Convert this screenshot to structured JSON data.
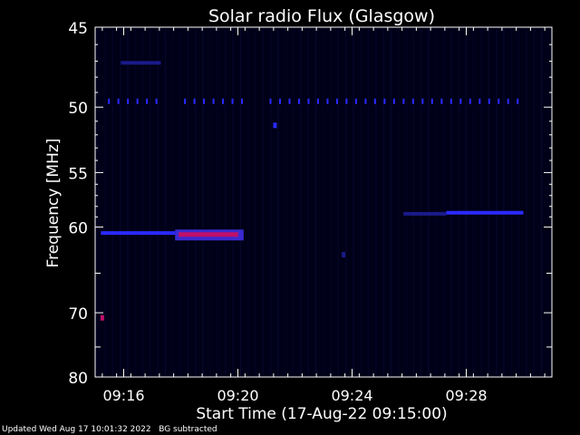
{
  "chart_data": {
    "type": "heatmap",
    "title": "Solar radio Flux (Glasgow)",
    "xlabel": "Start Time (17-Aug-22 09:15:00)",
    "ylabel": "Frequency [MHz]",
    "x_range_minutes": [
      9.25,
      9.5167
    ],
    "x_ticks": [
      {
        "label": "09:16",
        "minute": 16
      },
      {
        "label": "09:20",
        "minute": 20
      },
      {
        "label": "09:24",
        "minute": 24
      },
      {
        "label": "09:28",
        "minute": 28
      }
    ],
    "y_range_mhz": [
      45,
      80
    ],
    "y_scale": "log",
    "y_ticks": [
      45,
      50,
      55,
      60,
      70,
      80
    ],
    "features": [
      {
        "kind": "band",
        "freq_mhz": 60.6,
        "start_min": 15.2,
        "end_min": 17.8,
        "intensity": "medium"
      },
      {
        "kind": "band",
        "freq_mhz": 60.8,
        "start_min": 17.8,
        "end_min": 20.2,
        "intensity": "high"
      },
      {
        "kind": "band",
        "freq_mhz": 58.6,
        "start_min": 27.3,
        "end_min": 30.0,
        "intensity": "medium"
      },
      {
        "kind": "band",
        "freq_mhz": 58.7,
        "start_min": 25.8,
        "end_min": 27.3,
        "intensity": "low"
      },
      {
        "kind": "dashed",
        "freq_mhz": 49.6,
        "start_min": 15.2,
        "end_min": 30.0,
        "intensity": "medium"
      },
      {
        "kind": "band",
        "freq_mhz": 47.1,
        "start_min": 15.9,
        "end_min": 17.3,
        "intensity": "low"
      },
      {
        "kind": "spot",
        "freq_mhz": 70.7,
        "minute": 15.25,
        "intensity": "high"
      },
      {
        "kind": "spot",
        "freq_mhz": 51.3,
        "minute": 21.3,
        "intensity": "medium"
      },
      {
        "kind": "spot",
        "freq_mhz": 62.9,
        "minute": 23.7,
        "intensity": "low"
      }
    ]
  },
  "footer": {
    "updated": "Updated Wed Aug 17 10:01:32 2022",
    "note": "BG subtracted"
  },
  "colors": {
    "background": "#000000",
    "plot_bg": "#000018",
    "low": "#1a1a8a",
    "medium": "#2a2aff",
    "high": "#c0106a"
  }
}
